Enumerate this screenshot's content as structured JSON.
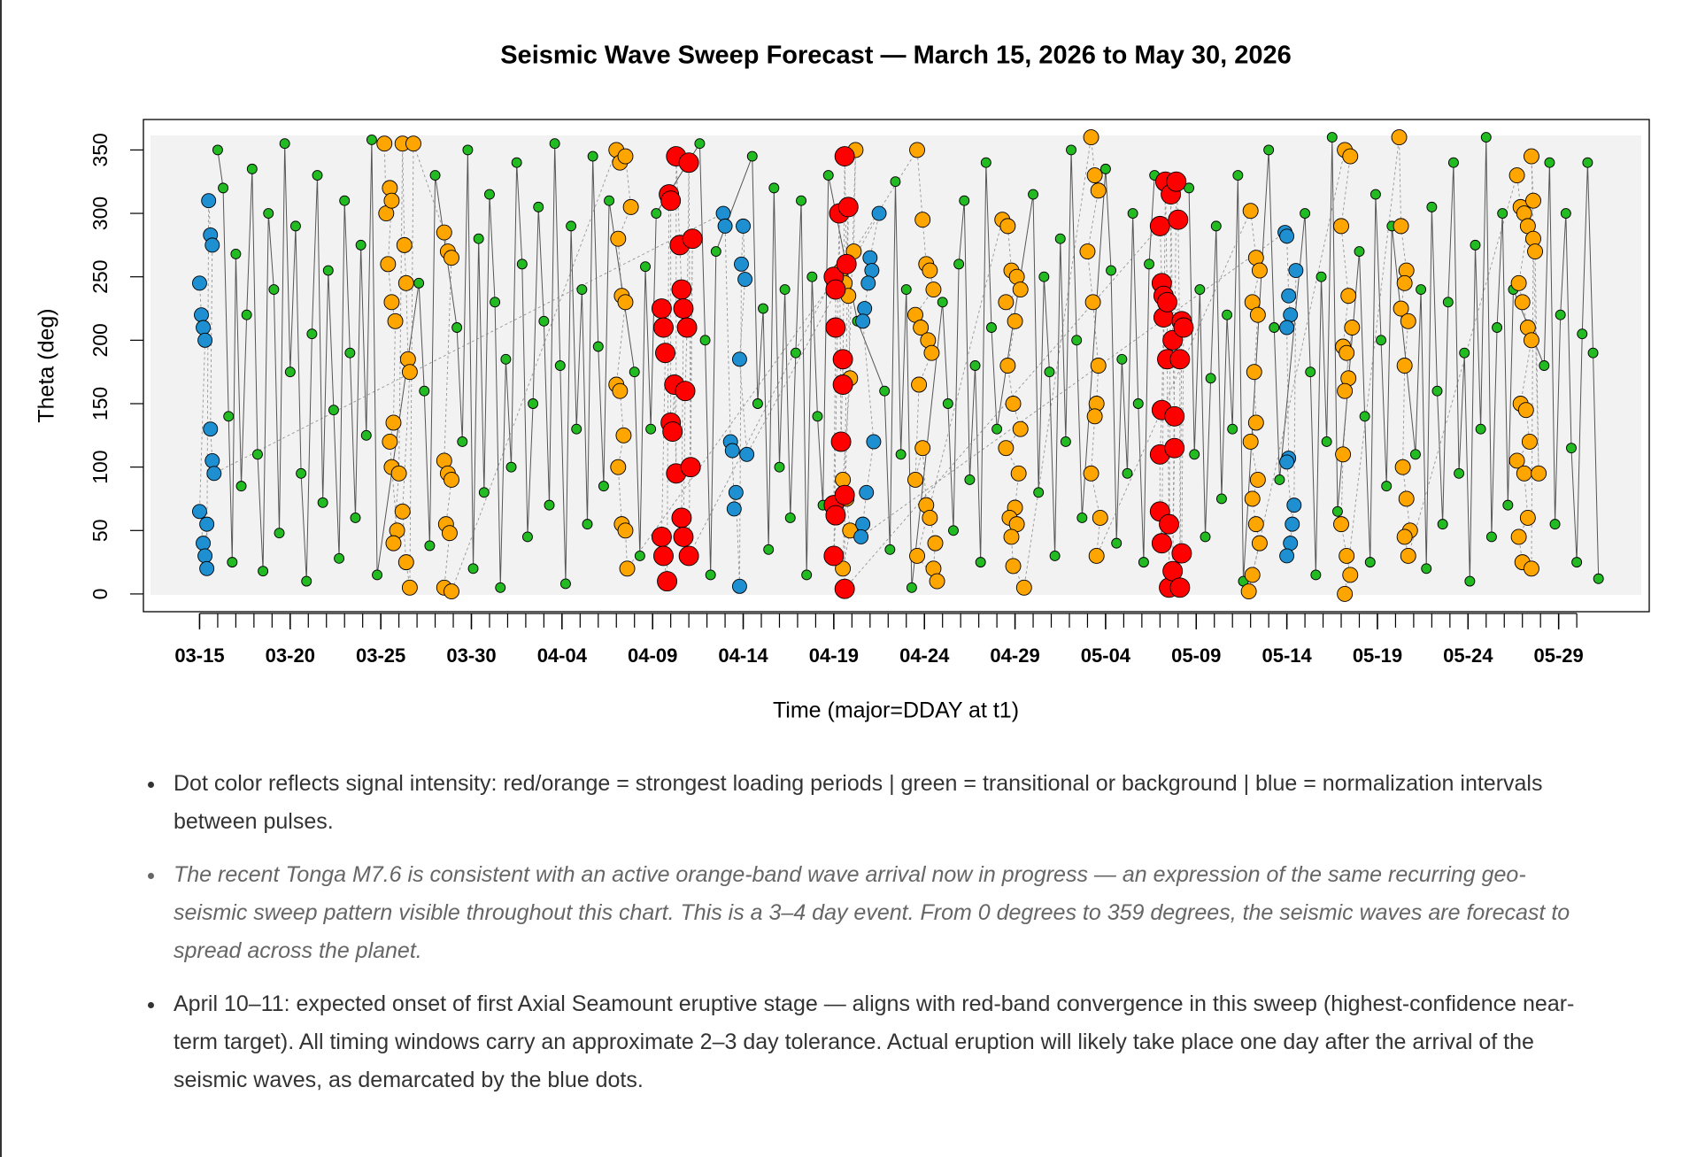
{
  "chart_data": {
    "type": "scatter",
    "title": "Seismic Wave Sweep Forecast — March 15, 2026 to May 30, 2026",
    "xlabel": "Time (major=DDAY at t1)",
    "ylabel": "Theta (deg)",
    "xlim": [
      -3.1,
      80
    ],
    "ylim": [
      -14,
      374
    ],
    "xticks": [
      {
        "value": 0,
        "label": "03-15"
      },
      {
        "value": 5,
        "label": "03-20"
      },
      {
        "value": 10,
        "label": "03-25"
      },
      {
        "value": 15,
        "label": "03-30"
      },
      {
        "value": 20,
        "label": "04-04"
      },
      {
        "value": 25,
        "label": "04-09"
      },
      {
        "value": 30,
        "label": "04-14"
      },
      {
        "value": 35,
        "label": "04-19"
      },
      {
        "value": 40,
        "label": "04-24"
      },
      {
        "value": 45,
        "label": "04-29"
      },
      {
        "value": 50,
        "label": "05-04"
      },
      {
        "value": 55,
        "label": "05-09"
      },
      {
        "value": 60,
        "label": "05-14"
      },
      {
        "value": 65,
        "label": "05-19"
      },
      {
        "value": 70,
        "label": "05-24"
      },
      {
        "value": 75,
        "label": "05-29"
      }
    ],
    "xminorticks": [
      0,
      1,
      2,
      3,
      4,
      5,
      6,
      7,
      8,
      9,
      10,
      11,
      12,
      13,
      14,
      15,
      16,
      17,
      18,
      19,
      20,
      21,
      22,
      23,
      24,
      25,
      26,
      27,
      28,
      29,
      30,
      31,
      32,
      33,
      34,
      35,
      36,
      37,
      38,
      39,
      40,
      41,
      42,
      43,
      44,
      45,
      46,
      47,
      48,
      49,
      50,
      51,
      52,
      53,
      54,
      55,
      56,
      57,
      58,
      59,
      60,
      61,
      62,
      63,
      64,
      65,
      66,
      67,
      68,
      69,
      70,
      71,
      72,
      73,
      74,
      75,
      76
    ],
    "yticks": [
      0,
      50,
      100,
      150,
      200,
      250,
      300,
      350
    ],
    "series": [
      {
        "color": "#22bb22",
        "x": [
          1,
          1.3,
          1.6,
          1.8,
          2.0,
          2.3,
          2.6,
          2.9,
          3.2,
          3.5,
          3.8,
          4.1,
          4.4,
          4.7,
          5,
          5.3,
          5.6,
          5.9,
          6.2,
          6.5,
          6.8,
          7.1,
          7.4,
          7.7,
          8.0,
          8.3,
          8.6,
          8.9,
          9.2,
          9.5,
          9.8,
          12.1,
          12.4,
          12.7,
          13.0,
          14.2,
          14.5,
          14.8,
          15.1,
          15.4,
          15.7,
          16.0,
          16.3,
          16.6,
          16.9,
          17.2,
          17.5,
          17.8,
          18.1,
          18.4,
          18.7,
          19.0,
          19.3,
          19.6,
          19.9,
          20.2,
          20.5,
          20.8,
          21.1,
          21.4,
          21.7,
          22.0,
          22.3,
          22.6,
          24.0,
          24.3,
          24.6,
          24.9,
          25.2,
          27.6,
          27.9,
          28.2,
          28.5,
          30.5,
          30.8,
          31.1,
          31.4,
          31.7,
          32.0,
          32.3,
          32.6,
          32.9,
          33.2,
          33.5,
          33.8,
          34.1,
          34.4,
          34.7,
          36.3,
          37.8,
          38.1,
          38.4,
          38.7,
          39.0,
          39.3,
          41.0,
          41.3,
          41.6,
          41.9,
          42.2,
          42.5,
          42.8,
          43.1,
          43.4,
          43.7,
          44.0,
          46.0,
          46.3,
          46.6,
          46.9,
          47.2,
          47.5,
          47.8,
          48.1,
          48.4,
          48.7,
          50.0,
          50.3,
          50.6,
          50.9,
          51.2,
          51.5,
          51.8,
          52.1,
          52.4,
          52.7,
          54.6,
          54.9,
          55.2,
          55.5,
          55.8,
          56.1,
          56.4,
          56.7,
          57.0,
          57.3,
          57.6,
          59.0,
          59.3,
          59.6,
          61.0,
          61.3,
          61.6,
          61.9,
          62.2,
          62.5,
          62.8,
          64.0,
          64.3,
          64.6,
          64.9,
          65.2,
          65.5,
          65.8,
          67.1,
          67.4,
          67.7,
          68.0,
          68.3,
          68.6,
          68.9,
          69.2,
          69.5,
          69.8,
          70.1,
          70.4,
          70.7,
          71.0,
          71.3,
          71.6,
          71.9,
          72.2,
          72.5,
          74.2,
          74.5,
          74.8,
          75.1,
          75.4,
          75.7,
          76.0,
          76.3,
          76.6,
          76.9,
          77.2
        ],
        "values": [
          350,
          320,
          140,
          25,
          268,
          85,
          220,
          335,
          110,
          18,
          300,
          240,
          48,
          355,
          175,
          290,
          95,
          10,
          205,
          330,
          72,
          255,
          145,
          28,
          310,
          190,
          60,
          275,
          125,
          358,
          15,
          245,
          160,
          38,
          330,
          210,
          120,
          350,
          20,
          280,
          80,
          315,
          230,
          5,
          185,
          100,
          340,
          260,
          45,
          150,
          305,
          215,
          70,
          355,
          180,
          8,
          290,
          130,
          240,
          55,
          345,
          195,
          85,
          310,
          175,
          30,
          258,
          130,
          300,
          355,
          200,
          15,
          270,
          345,
          150,
          225,
          35,
          320,
          100,
          240,
          60,
          190,
          310,
          15,
          250,
          140,
          70,
          330,
          215,
          160,
          35,
          325,
          110,
          240,
          5,
          230,
          150,
          50,
          260,
          310,
          90,
          180,
          25,
          340,
          210,
          130,
          315,
          80,
          250,
          175,
          30,
          280,
          120,
          350,
          200,
          60,
          335,
          255,
          40,
          185,
          95,
          300,
          150,
          25,
          260,
          330,
          320,
          110,
          240,
          45,
          170,
          290,
          75,
          220,
          130,
          330,
          10,
          350,
          210,
          90,
          300,
          175,
          15,
          250,
          120,
          360,
          65,
          270,
          140,
          25,
          315,
          200,
          85,
          290,
          110,
          240,
          20,
          305,
          160,
          55,
          230,
          340,
          95,
          190,
          10,
          275,
          130,
          360,
          45,
          210,
          300,
          70,
          240,
          180,
          340,
          55,
          220,
          300,
          115,
          25,
          205,
          340,
          190,
          12
        ]
      },
      {
        "color": "#ffa500",
        "x": [
          10.2,
          10.3,
          10.5,
          10.6,
          10.4,
          10.6,
          10.8,
          10.7,
          10.5,
          10.6,
          10.9,
          10.7,
          11.0,
          11.2,
          11.3,
          11.4,
          11.5,
          11.6,
          11.2,
          11.4,
          11.6,
          11.8,
          13.5,
          13.7,
          13.9,
          13.5,
          13.7,
          13.9,
          13.6,
          13.8,
          13.5,
          13.9,
          23.0,
          23.2,
          23.5,
          23.8,
          23.1,
          23.3,
          23.5,
          23.0,
          23.2,
          23.4,
          23.1,
          23.3,
          23.5,
          23.6,
          35.4,
          35.6,
          35.8,
          35.9,
          35.5,
          35.7,
          35.9,
          35.5,
          36.2,
          36.1,
          39.6,
          39.9,
          40.1,
          40.3,
          40.5,
          39.5,
          39.8,
          40.2,
          40.4,
          39.7,
          39.5,
          39.9,
          40.1,
          40.3,
          40.6,
          40.5,
          40.7,
          39.6,
          44.3,
          44.6,
          44.8,
          45.1,
          45.3,
          44.5,
          45.0,
          44.6,
          44.9,
          45.3,
          44.5,
          45.2,
          45.0,
          44.7,
          45.1,
          44.8,
          44.9,
          45.5,
          49.2,
          49.4,
          49.6,
          49.0,
          49.3,
          49.6,
          49.5,
          49.4,
          49.2,
          49.7,
          49.5,
          58.0,
          58.3,
          58.5,
          58.1,
          58.4,
          58.2,
          58.3,
          58.0,
          58.4,
          58.1,
          58.3,
          58.5,
          58.1,
          57.9,
          63.2,
          63.5,
          63.0,
          63.4,
          63.1,
          63.3,
          63.4,
          63.2,
          63.6,
          63.1,
          63.0,
          63.3,
          63.5,
          63.2,
          66.2,
          66.3,
          66.6,
          66.5,
          66.3,
          66.7,
          66.5,
          66.4,
          66.6,
          66.8,
          66.5,
          66.7,
          72.7,
          72.9,
          73.1,
          73.3,
          72.8,
          73.0,
          73.3,
          73.5,
          72.9,
          73.2,
          73.4,
          72.7,
          73.1,
          73.3,
          72.8,
          73.0,
          73.5,
          73.6,
          73.7,
          73.9,
          73.5,
          73.6
        ],
        "values": [
          355,
          300,
          320,
          310,
          260,
          230,
          215,
          135,
          120,
          100,
          50,
          40,
          95,
          355,
          275,
          245,
          185,
          175,
          65,
          25,
          5,
          355,
          285,
          270,
          265,
          105,
          95,
          90,
          55,
          48,
          5,
          2,
          350,
          340,
          345,
          305,
          280,
          235,
          230,
          165,
          160,
          125,
          100,
          55,
          50,
          20,
          255,
          245,
          235,
          170,
          90,
          75,
          50,
          20,
          350,
          270,
          350,
          295,
          260,
          255,
          240,
          220,
          210,
          200,
          190,
          165,
          90,
          115,
          70,
          60,
          40,
          20,
          10,
          30,
          295,
          290,
          255,
          250,
          240,
          230,
          215,
          180,
          150,
          130,
          115,
          95,
          68,
          60,
          55,
          45,
          22,
          5,
          360,
          330,
          318,
          270,
          230,
          180,
          150,
          140,
          95,
          60,
          30,
          302,
          265,
          255,
          230,
          220,
          175,
          135,
          120,
          90,
          75,
          55,
          40,
          15,
          2,
          350,
          345,
          290,
          235,
          195,
          190,
          170,
          160,
          210,
          110,
          55,
          30,
          15,
          0,
          360,
          290,
          255,
          245,
          225,
          215,
          180,
          100,
          75,
          50,
          45,
          30,
          330,
          305,
          300,
          290,
          245,
          230,
          210,
          200,
          150,
          145,
          120,
          105,
          95,
          60,
          45,
          25,
          20,
          280,
          270,
          95,
          345,
          310
        ]
      },
      {
        "color": "#1e8fd0",
        "x": [
          0,
          0.1,
          0.2,
          0.3,
          0,
          0.2,
          0.3,
          0.4,
          0.4,
          0.5,
          0.6,
          0.7,
          0.6,
          0.7,
          0.8,
          28.9,
          29.0,
          29.3,
          29.4,
          29.5,
          29.6,
          29.8,
          29.9,
          30.0,
          30.1,
          29.8,
          30.2,
          37.5,
          37.0,
          37.1,
          36.9,
          36.7,
          36.6,
          37.2,
          36.8,
          36.6,
          36.5,
          59.9,
          60.0,
          60.1,
          60.2,
          60.0,
          60.1,
          60.0,
          60.3,
          60.2,
          60.0,
          60.4,
          60.5
        ],
        "values": [
          245,
          220,
          210,
          200,
          65,
          40,
          30,
          55,
          20,
          310,
          283,
          275,
          130,
          105,
          95,
          300,
          290,
          120,
          113,
          67,
          80,
          6,
          260,
          290,
          248,
          185,
          110,
          300,
          265,
          255,
          245,
          225,
          215,
          120,
          80,
          55,
          45,
          285,
          282,
          235,
          220,
          210,
          107,
          104,
          55,
          40,
          30,
          70,
          255
        ]
      },
      {
        "color": "#ff0000",
        "x": [
          25.5,
          25.6,
          25.7,
          25.5,
          25.6,
          25.8,
          25.9,
          26.0,
          26.0,
          26.1,
          26.2,
          26.3,
          26.3,
          26.5,
          26.6,
          26.7,
          26.6,
          26.7,
          26.8,
          26.9,
          27.0,
          27.1,
          27.2,
          27.0,
          35.0,
          35.1,
          35.1,
          35.0,
          35.1,
          35.0,
          35.3,
          35.4,
          35.5,
          35.5,
          35.6,
          35.7,
          35.8,
          35.6,
          35.6,
          53.0,
          53.1,
          53.2,
          53.2,
          53.1,
          53.0,
          53.0,
          53.1,
          53.3,
          53.4,
          53.4,
          53.5,
          53.5,
          53.6,
          53.7,
          53.8,
          53.8,
          53.7,
          53.9,
          54.0,
          54.1,
          54.1,
          54.2,
          54.3,
          54.2
        ],
        "values": [
          225,
          210,
          190,
          45,
          30,
          10,
          315,
          310,
          135,
          128,
          165,
          95,
          345,
          275,
          240,
          225,
          60,
          45,
          160,
          210,
          340,
          100,
          280,
          30,
          250,
          240,
          210,
          70,
          62,
          30,
          300,
          120,
          185,
          165,
          345,
          260,
          305,
          78,
          4,
          290,
          245,
          235,
          218,
          145,
          110,
          65,
          40,
          325,
          230,
          185,
          55,
          5,
          315,
          200,
          140,
          115,
          18,
          325,
          295,
          185,
          5,
          215,
          210,
          32
        ]
      }
    ]
  },
  "notes": [
    "Dot color reflects signal intensity: red/orange = strongest loading periods | green = transitional or background | blue = normalization intervals between pulses.",
    "The recent Tonga M7.6 is consistent with an active orange-band wave arrival now in progress — an expression of the same recurring geo-seismic sweep pattern visible throughout this chart. This is a 3–4 day event. From 0 degrees to 359 degrees, the seismic waves are forecast to spread across the planet.",
    "April 10–11: expected onset of first Axial Seamount eruptive stage — aligns with red-band convergence in this sweep (highest-confidence near-term target). All timing windows carry an approximate 2–3 day tolerance. Actual eruption will likely take place one day after the arrival of the seismic waves, as demarcated by the blue dots."
  ]
}
